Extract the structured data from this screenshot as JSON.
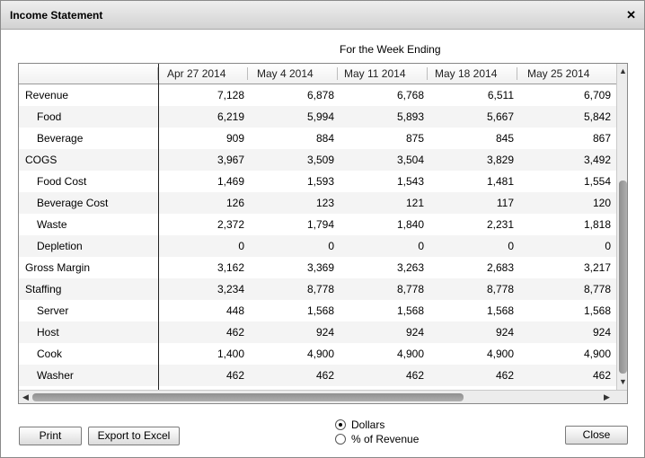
{
  "window": {
    "title": "Income Statement",
    "close_icon": "close-icon"
  },
  "table": {
    "caption": "For the Week Ending",
    "columns": [
      "Apr 27 2014",
      "May 4 2014",
      "May 11 2014",
      "May 18 2014",
      "May 25 2014"
    ],
    "rows": [
      {
        "label": "Revenue",
        "indent": false,
        "values": [
          "7,128",
          "6,878",
          "6,768",
          "6,511",
          "6,709"
        ]
      },
      {
        "label": "Food",
        "indent": true,
        "values": [
          "6,219",
          "5,994",
          "5,893",
          "5,667",
          "5,842"
        ]
      },
      {
        "label": "Beverage",
        "indent": true,
        "values": [
          "909",
          "884",
          "875",
          "845",
          "867"
        ]
      },
      {
        "label": "COGS",
        "indent": false,
        "values": [
          "3,967",
          "3,509",
          "3,504",
          "3,829",
          "3,492"
        ]
      },
      {
        "label": "Food Cost",
        "indent": true,
        "values": [
          "1,469",
          "1,593",
          "1,543",
          "1,481",
          "1,554"
        ]
      },
      {
        "label": "Beverage Cost",
        "indent": true,
        "values": [
          "126",
          "123",
          "121",
          "117",
          "120"
        ]
      },
      {
        "label": "Waste",
        "indent": true,
        "values": [
          "2,372",
          "1,794",
          "1,840",
          "2,231",
          "1,818"
        ]
      },
      {
        "label": "Depletion",
        "indent": true,
        "values": [
          "0",
          "0",
          "0",
          "0",
          "0"
        ]
      },
      {
        "label": "Gross Margin",
        "indent": false,
        "values": [
          "3,162",
          "3,369",
          "3,263",
          "2,683",
          "3,217"
        ]
      },
      {
        "label": "Staffing",
        "indent": false,
        "values": [
          "3,234",
          "8,778",
          "8,778",
          "8,778",
          "8,778"
        ]
      },
      {
        "label": "Server",
        "indent": true,
        "values": [
          "448",
          "1,568",
          "1,568",
          "1,568",
          "1,568"
        ]
      },
      {
        "label": "Host",
        "indent": true,
        "values": [
          "462",
          "924",
          "924",
          "924",
          "924"
        ]
      },
      {
        "label": "Cook",
        "indent": true,
        "values": [
          "1,400",
          "4,900",
          "4,900",
          "4,900",
          "4,900"
        ]
      },
      {
        "label": "Washer",
        "indent": true,
        "values": [
          "462",
          "462",
          "462",
          "462",
          "462"
        ]
      }
    ]
  },
  "buttons": {
    "print": "Print",
    "export": "Export to Excel",
    "close": "Close"
  },
  "display_mode": {
    "options": [
      {
        "label": "Dollars",
        "selected": true
      },
      {
        "label": "% of Revenue",
        "selected": false
      }
    ]
  },
  "colors": {
    "row_alt": "#f4f4f4",
    "titlebar": "#dcdcdc",
    "scroll_thumb": "#9e9e9e"
  }
}
